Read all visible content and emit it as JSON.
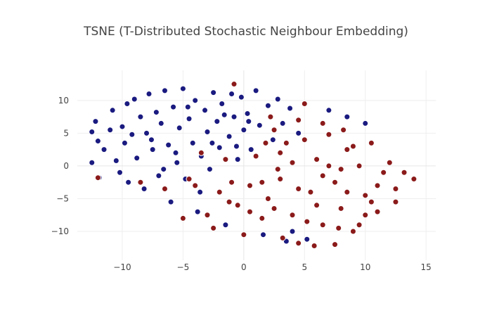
{
  "chart_data": {
    "type": "scatter",
    "title": "TSNE (T-Distributed Stochastic Neighbour Embedding)",
    "xlabel": "",
    "ylabel": "",
    "xlim": [
      -13.7,
      15.8
    ],
    "ylim": [
      -14.4,
      14.6
    ],
    "x_ticks": [
      -10,
      -5,
      0,
      5,
      10,
      15
    ],
    "y_ticks": [
      -10,
      -5,
      0,
      5,
      10
    ],
    "x_tick_labels": [
      "−10",
      "−5",
      "0",
      "5",
      "10",
      "15"
    ],
    "y_tick_labels": [
      "−10",
      "−5",
      "0",
      "5",
      "10"
    ],
    "grid": true,
    "legend": "none",
    "colors": {
      "blue_cluster": "#1a1a80",
      "red_cluster": "#8b1a1a"
    },
    "series": [
      {
        "color": "#1a1a80",
        "points": [
          [
            -12.5,
            0.5
          ],
          [
            -12.5,
            5.2
          ],
          [
            -12.2,
            6.8
          ],
          [
            -12.0,
            3.8
          ],
          [
            -11.9,
            -1.8
          ],
          [
            -11.5,
            2.5
          ],
          [
            -11.0,
            5.5
          ],
          [
            -10.8,
            8.5
          ],
          [
            -10.5,
            0.8
          ],
          [
            -10.2,
            -1.0
          ],
          [
            -10.0,
            6.0
          ],
          [
            -9.8,
            3.5
          ],
          [
            -9.6,
            9.5
          ],
          [
            -9.5,
            -2.5
          ],
          [
            -9.2,
            4.8
          ],
          [
            -9.0,
            10.2
          ],
          [
            -8.8,
            1.2
          ],
          [
            -8.5,
            7.5
          ],
          [
            -8.2,
            -3.5
          ],
          [
            -8.0,
            5.0
          ],
          [
            -7.8,
            11.0
          ],
          [
            -7.5,
            2.5
          ],
          [
            -7.2,
            8.2
          ],
          [
            -7.0,
            -1.5
          ],
          [
            -6.8,
            6.5
          ],
          [
            -6.5,
            11.5
          ],
          [
            -6.2,
            3.2
          ],
          [
            -6.0,
            -5.5
          ],
          [
            -5.8,
            9.0
          ],
          [
            -5.5,
            0.5
          ],
          [
            -5.3,
            5.8
          ],
          [
            -5.0,
            11.8
          ],
          [
            -4.8,
            -2.0
          ],
          [
            -4.5,
            7.2
          ],
          [
            -4.2,
            3.5
          ],
          [
            -4.0,
            10.0
          ],
          [
            -3.8,
            -7.0
          ],
          [
            -3.5,
            1.5
          ],
          [
            -3.2,
            8.5
          ],
          [
            -3.0,
            5.2
          ],
          [
            -2.8,
            -0.5
          ],
          [
            -2.5,
            11.2
          ],
          [
            -2.2,
            6.8
          ],
          [
            -2.0,
            2.8
          ],
          [
            -1.8,
            9.5
          ],
          [
            -1.5,
            -9.0
          ],
          [
            -1.2,
            4.5
          ],
          [
            -1.0,
            11.0
          ],
          [
            -0.8,
            7.5
          ],
          [
            -0.5,
            1.0
          ],
          [
            -0.2,
            10.5
          ],
          [
            0.0,
            5.5
          ],
          [
            0.3,
            8.0
          ],
          [
            0.6,
            2.5
          ],
          [
            1.0,
            11.5
          ],
          [
            1.3,
            6.2
          ],
          [
            1.6,
            -10.5
          ],
          [
            2.0,
            9.2
          ],
          [
            2.4,
            4.0
          ],
          [
            2.8,
            10.2
          ],
          [
            3.2,
            6.5
          ],
          [
            3.5,
            -11.5
          ],
          [
            3.8,
            8.8
          ],
          [
            4.0,
            -10.0
          ],
          [
            4.5,
            5.0
          ],
          [
            5.2,
            -11.2
          ],
          [
            7.0,
            8.5
          ],
          [
            8.5,
            7.5
          ],
          [
            10.0,
            6.5
          ],
          [
            -7.6,
            4.0
          ],
          [
            -6.6,
            -0.5
          ],
          [
            -5.6,
            2.0
          ],
          [
            -4.6,
            9.0
          ],
          [
            -3.6,
            -4.0
          ],
          [
            -2.6,
            3.5
          ],
          [
            -1.6,
            7.8
          ],
          [
            -0.6,
            3.0
          ],
          [
            0.4,
            6.8
          ]
        ]
      },
      {
        "color": "#8b1a1a",
        "points": [
          [
            -12.0,
            -1.8
          ],
          [
            -8.5,
            -2.5
          ],
          [
            -6.5,
            -3.5
          ],
          [
            -5.0,
            -8.0
          ],
          [
            -4.0,
            -3.0
          ],
          [
            -3.0,
            -7.5
          ],
          [
            -2.5,
            -9.5
          ],
          [
            -2.0,
            -4.0
          ],
          [
            -1.5,
            1.0
          ],
          [
            -1.0,
            -2.5
          ],
          [
            -0.8,
            12.5
          ],
          [
            -0.5,
            -6.0
          ],
          [
            0.0,
            -10.5
          ],
          [
            0.5,
            -3.0
          ],
          [
            1.0,
            1.5
          ],
          [
            1.5,
            -8.0
          ],
          [
            2.0,
            -5.0
          ],
          [
            2.5,
            5.5
          ],
          [
            3.0,
            -2.0
          ],
          [
            3.5,
            3.5
          ],
          [
            4.0,
            -7.5
          ],
          [
            4.5,
            -11.8
          ],
          [
            5.0,
            9.5
          ],
          [
            5.5,
            -4.0
          ],
          [
            6.0,
            1.0
          ],
          [
            6.5,
            -9.0
          ],
          [
            7.0,
            4.8
          ],
          [
            7.5,
            -2.5
          ],
          [
            8.0,
            -6.5
          ],
          [
            8.5,
            2.5
          ],
          [
            9.0,
            -10.0
          ],
          [
            9.5,
            0.0
          ],
          [
            10.0,
            -4.5
          ],
          [
            10.5,
            3.5
          ],
          [
            11.0,
            -7.0
          ],
          [
            11.5,
            -1.0
          ],
          [
            12.0,
            0.5
          ],
          [
            12.5,
            -3.5
          ],
          [
            13.2,
            -1.0
          ],
          [
            14.0,
            -2.0
          ],
          [
            3.2,
            -11.0
          ],
          [
            5.8,
            -12.2
          ],
          [
            7.5,
            -12.0
          ],
          [
            9.5,
            -9.0
          ],
          [
            4.5,
            7.0
          ],
          [
            6.5,
            6.5
          ],
          [
            8.2,
            5.5
          ],
          [
            2.2,
            7.5
          ],
          [
            4.0,
            0.5
          ],
          [
            6.0,
            -6.0
          ],
          [
            8.0,
            -0.5
          ],
          [
            10.0,
            -7.5
          ],
          [
            1.5,
            -2.5
          ],
          [
            3.0,
            2.0
          ],
          [
            5.0,
            4.0
          ],
          [
            7.0,
            0.0
          ],
          [
            9.0,
            3.0
          ],
          [
            11.0,
            -3.0
          ],
          [
            0.5,
            -7.0
          ],
          [
            2.5,
            -6.5
          ],
          [
            4.5,
            -3.5
          ],
          [
            6.5,
            -1.5
          ],
          [
            8.5,
            -4.0
          ],
          [
            10.5,
            -5.5
          ],
          [
            12.5,
            -5.5
          ],
          [
            2.8,
            -0.5
          ],
          [
            5.2,
            -8.5
          ],
          [
            7.8,
            -9.5
          ],
          [
            -1.2,
            -5.5
          ],
          [
            -3.5,
            2.0
          ],
          [
            -4.5,
            -2.0
          ],
          [
            1.8,
            3.5
          ]
        ]
      }
    ]
  }
}
